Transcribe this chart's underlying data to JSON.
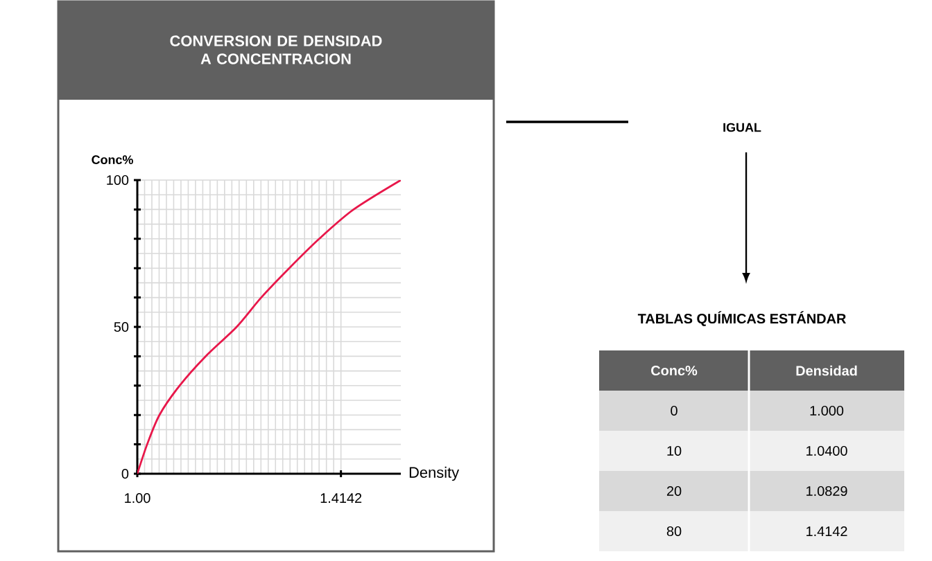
{
  "chart_data": [
    {
      "type": "line",
      "title": "CONVERSION DE DENSIDAD\nA CONCENTRACION",
      "xlabel": "Density",
      "ylabel": "Conc%",
      "x": [
        1.0,
        1.02,
        1.045,
        1.086,
        1.139,
        1.202,
        1.252,
        1.309,
        1.37,
        1.44,
        1.536
      ],
      "series": [
        {
          "color": "#e8174a",
          "values": [
            0,
            10,
            20,
            30,
            40,
            50,
            60,
            70,
            80,
            90,
            100
          ]
        }
      ],
      "xlim": [
        1.0,
        1.536
      ],
      "ylim": [
        0,
        100
      ],
      "xticks": [
        {
          "value": 1.0,
          "label": "1.00"
        },
        1.4142
      ],
      "yticks": [
        0,
        {
          "value": 10,
          "label": null
        },
        {
          "value": 20,
          "label": null
        },
        {
          "value": 30,
          "label": null
        },
        {
          "value": 40,
          "label": null
        },
        50,
        {
          "value": 60,
          "label": null
        },
        {
          "value": 70,
          "label": null
        },
        {
          "value": 80,
          "label": null
        },
        {
          "value": 90,
          "label": null
        },
        100
      ],
      "grid": true,
      "marker": "none",
      "line_style": "solid"
    },
    {
      "type": "other",
      "title": "TABLAS QUÍMICAS ESTÁNDAR",
      "annotations": [
        "IGUAL",
        "Conc%",
        "Densidad",
        "0",
        "1.000",
        "10",
        "1.0400",
        "20",
        "1.0829",
        "80",
        "1.4142"
      ]
    }
  ]
}
